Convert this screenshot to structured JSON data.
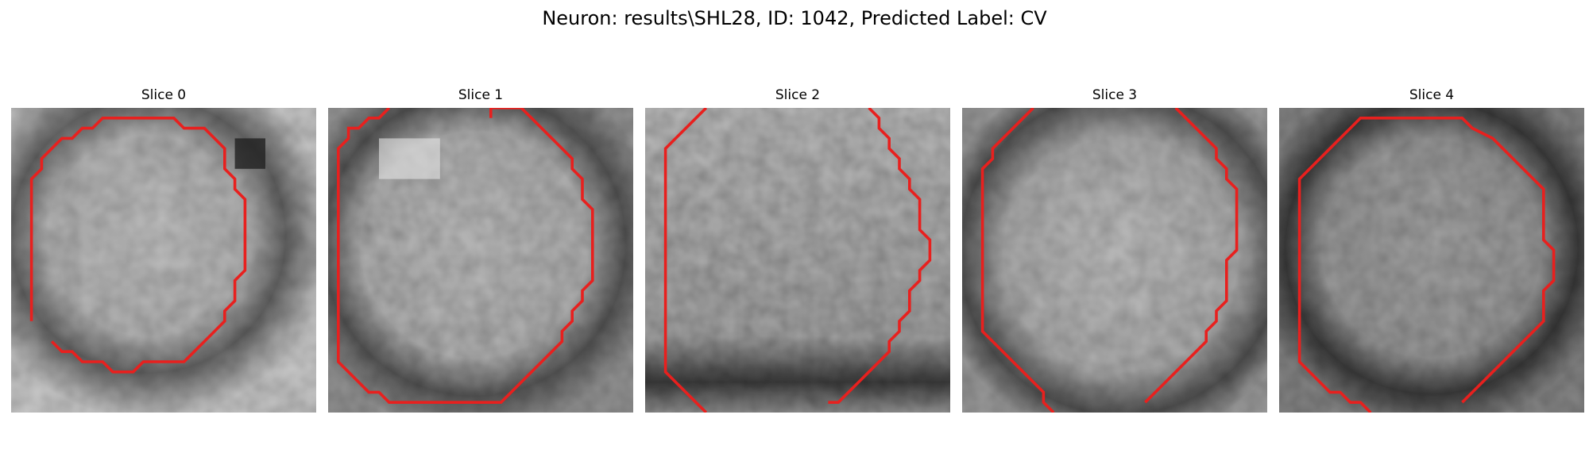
{
  "figure": {
    "title": "Neuron: results\\SHL28, ID: 1042, Predicted Label: CV"
  },
  "colors": {
    "contour": "#e8201e",
    "background": "#ffffff"
  },
  "panels": [
    {
      "title": "Slice 0",
      "image": "grayscale EM slice, bright rounded cell body in center with dark membrane edge; red segmentation contour outlines the cell"
    },
    {
      "title": "Slice 1",
      "image": "grayscale EM slice, cell body nearly fills the frame, dark rim on lower and left sides; red contour around cell"
    },
    {
      "title": "Slice 2",
      "image": "grayscale EM slice, textured gray cell interior, dark band at bottom; red contour partially cut at frame edges"
    },
    {
      "title": "Slice 3",
      "image": "grayscale EM slice, mottled interior with brighter center; red contour partially cut at top and bottom"
    },
    {
      "title": "Slice 4",
      "image": "grayscale EM slice, dark ring surrounding gray interior; red octagonal contour around cell"
    }
  ]
}
